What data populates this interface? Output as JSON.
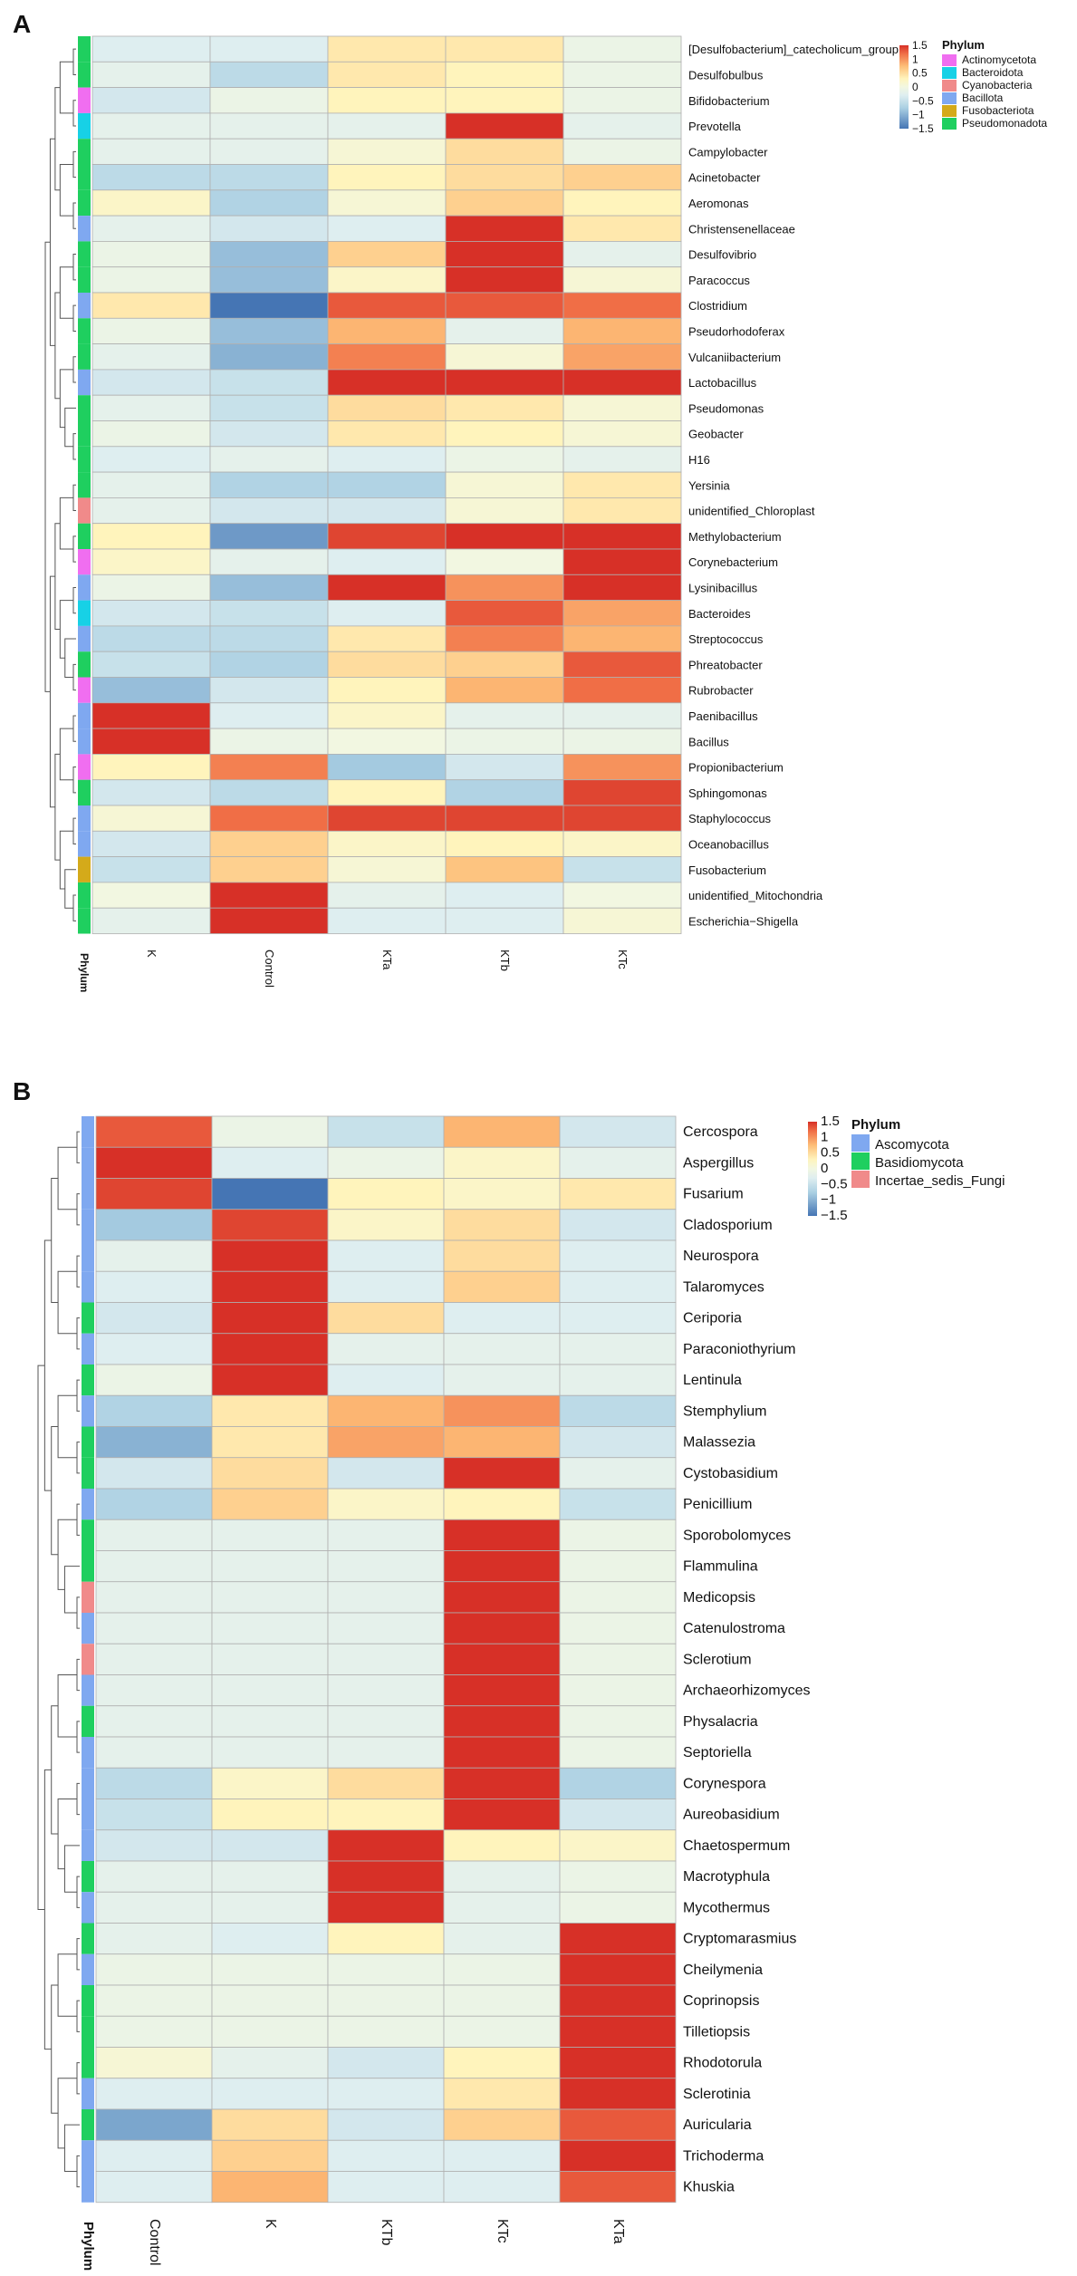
{
  "chart_data": [
    {
      "type": "heatmap",
      "panel": "A",
      "columns": [
        "K",
        "Control",
        "KTa",
        "KTb",
        "KTc"
      ],
      "rows": [
        "[Desulfobacterium]_catecholicum_group",
        "Desulfobulbus",
        "Bifidobacterium",
        "Prevotella",
        "Campylobacter",
        "Acinetobacter",
        "Aeromonas",
        "Christensenellaceae",
        "Desulfovibrio",
        "Paracoccus",
        "Clostridium",
        "Pseudorhodoferax",
        "Vulcaniibacterium",
        "Lactobacillus",
        "Pseudomonas",
        "Geobacter",
        "H16",
        "Yersinia",
        "unidentified_Chloroplast",
        "Methylobacterium",
        "Corynebacterium",
        "Lysinibacillus",
        "Bacteroides",
        "Streptococcus",
        "Phreatobacter",
        "Rubrobacter",
        "Paenibacillus",
        "Bacillus",
        "Propionibacterium",
        "Sphingomonas",
        "Staphylococcus",
        "Oceanobacillus",
        "Fusobacterium",
        "unidentified_Mitochondria",
        "Escherichia−Shigella"
      ],
      "phylum": [
        "Pseudomonadota",
        "Pseudomonadota",
        "Actinomycetota",
        "Bacteroidota",
        "Pseudomonadota",
        "Pseudomonadota",
        "Pseudomonadota",
        "Bacillota",
        "Pseudomonadota",
        "Pseudomonadota",
        "Bacillota",
        "Pseudomonadota",
        "Pseudomonadota",
        "Bacillota",
        "Pseudomonadota",
        "Pseudomonadota",
        "Pseudomonadota",
        "Pseudomonadota",
        "Cyanobacteria",
        "Pseudomonadota",
        "Actinomycetota",
        "Bacillota",
        "Bacteroidota",
        "Bacillota",
        "Pseudomonadota",
        "Actinomycetota",
        "Bacillota",
        "Bacillota",
        "Actinomycetota",
        "Pseudomonadota",
        "Bacillota",
        "Bacillota",
        "Fusobacteriota",
        "Pseudomonadota",
        "Pseudomonadota"
      ],
      "values": [
        [
          -0.3,
          -0.3,
          0.4,
          0.4,
          -0.1
        ],
        [
          -0.2,
          -0.6,
          0.4,
          0.3,
          -0.1
        ],
        [
          -0.4,
          -0.1,
          0.3,
          0.3,
          -0.1
        ],
        [
          -0.2,
          -0.2,
          -0.2,
          1.9,
          -0.2
        ],
        [
          -0.2,
          -0.2,
          0.1,
          0.5,
          -0.1
        ],
        [
          -0.6,
          -0.6,
          0.3,
          0.5,
          0.6
        ],
        [
          0.2,
          -0.7,
          0.1,
          0.6,
          0.3
        ],
        [
          -0.2,
          -0.4,
          -0.3,
          1.8,
          0.4
        ],
        [
          -0.1,
          -0.9,
          0.6,
          1.6,
          -0.2
        ],
        [
          -0.1,
          -0.9,
          0.2,
          1.6,
          0.1
        ],
        [
          0.4,
          -1.5,
          1.3,
          1.3,
          1.2
        ],
        [
          -0.1,
          -0.9,
          0.8,
          -0.2,
          0.8
        ],
        [
          -0.2,
          -1.0,
          1.1,
          0.1,
          0.9
        ],
        [
          -0.4,
          -0.5,
          1.6,
          1.6,
          1.6
        ],
        [
          -0.2,
          -0.5,
          0.5,
          0.4,
          0.1
        ],
        [
          -0.1,
          -0.4,
          0.4,
          0.3,
          0.1
        ],
        [
          -0.3,
          -0.2,
          -0.3,
          -0.1,
          -0.2
        ],
        [
          -0.2,
          -0.7,
          -0.7,
          0.1,
          0.4
        ],
        [
          -0.2,
          -0.4,
          -0.4,
          0.1,
          0.4
        ],
        [
          0.3,
          -1.2,
          1.4,
          1.6,
          1.6
        ],
        [
          0.2,
          -0.2,
          -0.3,
          0.0,
          1.9
        ],
        [
          -0.1,
          -0.9,
          1.9,
          1.0,
          1.9
        ],
        [
          -0.4,
          -0.5,
          -0.3,
          1.3,
          0.9
        ],
        [
          -0.6,
          -0.6,
          0.4,
          1.1,
          0.8
        ],
        [
          -0.5,
          -0.7,
          0.5,
          0.6,
          1.3
        ],
        [
          -0.9,
          -0.4,
          0.3,
          0.8,
          1.2
        ],
        [
          1.9,
          -0.3,
          0.2,
          -0.2,
          -0.2
        ],
        [
          1.9,
          -0.1,
          0.0,
          -0.1,
          -0.1
        ],
        [
          0.3,
          1.1,
          -0.8,
          -0.4,
          1.0
        ],
        [
          -0.4,
          -0.6,
          0.3,
          -0.7,
          1.4
        ],
        [
          0.1,
          1.2,
          1.4,
          1.4,
          1.4
        ],
        [
          -0.4,
          0.6,
          0.2,
          0.3,
          0.2
        ],
        [
          -0.5,
          0.6,
          0.1,
          0.7,
          -0.5
        ],
        [
          0.0,
          1.9,
          -0.2,
          -0.3,
          0.0
        ],
        [
          -0.2,
          1.9,
          -0.3,
          -0.3,
          0.1
        ]
      ],
      "scale": {
        "min": -1.5,
        "max": 1.5,
        "ticks": [
          "1.5",
          "1",
          "0.5",
          "0",
          "−0.5",
          "−1",
          "−1.5"
        ]
      },
      "phylum_legend": [
        {
          "name": "Actinomycetota",
          "color": "#f06ef0"
        },
        {
          "name": "Bacteroidota",
          "color": "#17d1e6"
        },
        {
          "name": "Cyanobacteria",
          "color": "#f08a8a"
        },
        {
          "name": "Bacillota",
          "color": "#7fa8f0"
        },
        {
          "name": "Fusobacteriota",
          "color": "#d4aa1a"
        },
        {
          "name": "Pseudomonadota",
          "color": "#1fcf5f"
        }
      ],
      "legend_title": "Phylum",
      "annotation_label": "Phylum"
    },
    {
      "type": "heatmap",
      "panel": "B",
      "columns": [
        "Control",
        "K",
        "KTb",
        "KTc",
        "KTa"
      ],
      "rows": [
        "Cercospora",
        "Aspergillus",
        "Fusarium",
        "Cladosporium",
        "Neurospora",
        "Talaromyces",
        "Ceriporia",
        "Paraconiothyrium",
        "Lentinula",
        "Stemphylium",
        "Malassezia",
        "Cystobasidium",
        "Penicillium",
        "Sporobolomyces",
        "Flammulina",
        "Medicopsis",
        "Catenulostroma",
        "Sclerotium",
        "Archaeorhizomyces",
        "Physalacria",
        "Septoriella",
        "Corynespora",
        "Aureobasidium",
        "Chaetospermum",
        "Macrotyphula",
        "Mycothermus",
        "Cryptomarasmius",
        "Cheilymenia",
        "Coprinopsis",
        "Tilletiopsis",
        "Rhodotorula",
        "Sclerotinia",
        "Auricularia",
        "Trichoderma",
        "Khuskia"
      ],
      "phylum": [
        "Ascomycota",
        "Ascomycota",
        "Ascomycota",
        "Ascomycota",
        "Ascomycota",
        "Ascomycota",
        "Basidiomycota",
        "Ascomycota",
        "Basidiomycota",
        "Ascomycota",
        "Basidiomycota",
        "Basidiomycota",
        "Ascomycota",
        "Basidiomycota",
        "Basidiomycota",
        "Incertae_sedis_Fungi",
        "Ascomycota",
        "Incertae_sedis_Fungi",
        "Ascomycota",
        "Basidiomycota",
        "Ascomycota",
        "Ascomycota",
        "Ascomycota",
        "Ascomycota",
        "Basidiomycota",
        "Ascomycota",
        "Basidiomycota",
        "Ascomycota",
        "Basidiomycota",
        "Basidiomycota",
        "Basidiomycota",
        "Ascomycota",
        "Basidiomycota",
        "Ascomycota",
        "Ascomycota"
      ],
      "values": [
        [
          1.3,
          -0.1,
          -0.5,
          0.8,
          -0.4
        ],
        [
          1.8,
          -0.3,
          -0.1,
          0.2,
          -0.2
        ],
        [
          1.4,
          -1.5,
          0.3,
          0.2,
          0.4
        ],
        [
          -0.8,
          1.4,
          0.2,
          0.5,
          -0.4
        ],
        [
          -0.2,
          1.5,
          -0.3,
          0.5,
          -0.3
        ],
        [
          -0.3,
          1.5,
          -0.3,
          0.6,
          -0.3
        ],
        [
          -0.4,
          1.5,
          0.5,
          -0.3,
          -0.3
        ],
        [
          -0.3,
          1.8,
          -0.2,
          -0.2,
          -0.2
        ],
        [
          -0.1,
          1.8,
          -0.3,
          -0.2,
          -0.2
        ],
        [
          -0.7,
          0.4,
          0.8,
          1.0,
          -0.6
        ],
        [
          -1.0,
          0.4,
          0.9,
          0.8,
          -0.4
        ],
        [
          -0.4,
          0.5,
          -0.4,
          1.5,
          -0.2
        ],
        [
          -0.7,
          0.6,
          0.2,
          0.3,
          -0.5
        ],
        [
          -0.2,
          -0.2,
          -0.2,
          1.9,
          -0.1
        ],
        [
          -0.2,
          -0.2,
          -0.2,
          1.9,
          -0.1
        ],
        [
          -0.2,
          -0.2,
          -0.2,
          1.9,
          -0.1
        ],
        [
          -0.2,
          -0.2,
          -0.2,
          1.9,
          -0.1
        ],
        [
          -0.2,
          -0.2,
          -0.2,
          1.9,
          -0.1
        ],
        [
          -0.2,
          -0.2,
          -0.2,
          1.9,
          -0.1
        ],
        [
          -0.2,
          -0.2,
          -0.2,
          1.9,
          -0.1
        ],
        [
          -0.2,
          -0.2,
          -0.2,
          1.9,
          -0.1
        ],
        [
          -0.6,
          0.2,
          0.5,
          1.6,
          -0.7
        ],
        [
          -0.5,
          0.3,
          0.3,
          1.7,
          -0.4
        ],
        [
          -0.4,
          -0.4,
          1.8,
          0.3,
          0.2
        ],
        [
          -0.2,
          -0.2,
          1.9,
          -0.2,
          -0.1
        ],
        [
          -0.2,
          -0.2,
          1.9,
          -0.2,
          -0.1
        ],
        [
          -0.2,
          -0.3,
          0.3,
          -0.2,
          1.9
        ],
        [
          -0.1,
          -0.1,
          -0.1,
          -0.1,
          1.9
        ],
        [
          -0.1,
          -0.1,
          -0.1,
          -0.1,
          1.9
        ],
        [
          -0.1,
          -0.1,
          -0.1,
          -0.1,
          1.9
        ],
        [
          0.1,
          -0.2,
          -0.4,
          0.3,
          1.9
        ],
        [
          -0.3,
          -0.3,
          -0.3,
          0.4,
          1.8
        ],
        [
          -1.1,
          0.5,
          -0.4,
          0.6,
          1.3
        ],
        [
          -0.3,
          0.6,
          -0.3,
          -0.3,
          1.6
        ],
        [
          -0.3,
          0.8,
          -0.3,
          -0.3,
          1.3
        ]
      ],
      "scale": {
        "min": -1.5,
        "max": 1.5,
        "ticks": [
          "1.5",
          "1",
          "0.5",
          "0",
          "−0.5",
          "−1",
          "−1.5"
        ]
      },
      "phylum_legend": [
        {
          "name": "Ascomycota",
          "color": "#7fa8f0"
        },
        {
          "name": "Basidiomycota",
          "color": "#1fcf5f"
        },
        {
          "name": "Incertae_sedis_Fungi",
          "color": "#f08a8a"
        }
      ],
      "legend_title": "Phylum",
      "annotation_label": "Phylum"
    }
  ]
}
